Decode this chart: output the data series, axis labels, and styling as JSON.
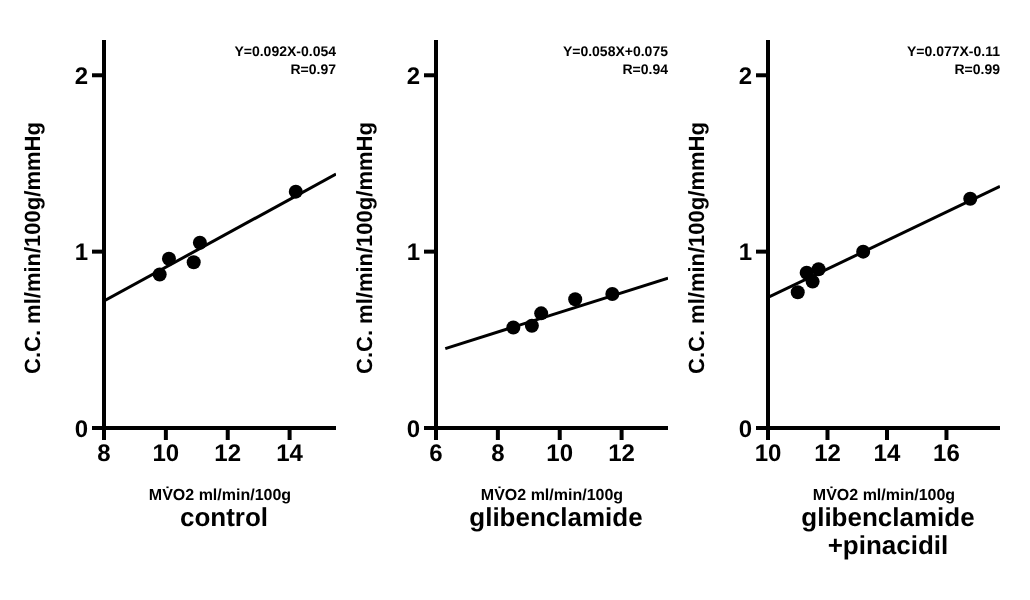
{
  "chart_data": [
    {
      "type": "scatter",
      "title": "control",
      "xlabel": "MV̇O2 ml/min/100g",
      "ylabel": "C.C. ml/min/100g/mmHg",
      "xlim": [
        8,
        15.5
      ],
      "xticks": [
        8,
        10,
        12,
        14
      ],
      "ylim": [
        0,
        2.2
      ],
      "yticks": [
        0,
        1,
        2
      ],
      "annotations": [
        "Y=0.092X-0.054",
        "R=0.97"
      ],
      "series": [
        {
          "marker": "circle",
          "color": "#000000",
          "x": [
            9.8,
            10.1,
            10.9,
            11.1,
            14.2
          ],
          "values": [
            0.87,
            0.96,
            0.94,
            1.05,
            1.34
          ]
        },
        {
          "type": "line",
          "marker": "none",
          "color": "#000000",
          "x": [
            8,
            15.5
          ],
          "values": [
            0.72,
            1.44
          ]
        }
      ]
    },
    {
      "type": "scatter",
      "title": "glibenclamide",
      "xlabel": "MV̇O2 ml/min/100g",
      "ylabel": "C.C. ml/min/100g/mmHg",
      "xlim": [
        6,
        13.5
      ],
      "xticks": [
        6,
        8,
        10,
        12
      ],
      "ylim": [
        0,
        2.2
      ],
      "yticks": [
        0,
        1,
        2
      ],
      "annotations": [
        "Y=0.058X+0.075",
        "R=0.94"
      ],
      "series": [
        {
          "marker": "circle",
          "color": "#000000",
          "x": [
            8.5,
            9.1,
            9.4,
            10.5,
            11.7
          ],
          "values": [
            0.57,
            0.58,
            0.65,
            0.73,
            0.76
          ]
        },
        {
          "type": "line",
          "marker": "none",
          "color": "#000000",
          "x": [
            6.3,
            13.5
          ],
          "values": [
            0.45,
            0.85
          ]
        }
      ]
    },
    {
      "type": "scatter",
      "title": "glibenclamide +pinacidil",
      "xlabel": "MV̇O2 ml/min/100g",
      "ylabel": "C.C. ml/min/100g/mmHg",
      "xlim": [
        10,
        17.8
      ],
      "xticks": [
        10,
        12,
        14,
        16
      ],
      "ylim": [
        0,
        2.2
      ],
      "yticks": [
        0,
        1,
        2
      ],
      "annotations": [
        "Y=0.077X-0.11",
        "R=0.99"
      ],
      "series": [
        {
          "marker": "circle",
          "color": "#000000",
          "x": [
            11.0,
            11.3,
            11.5,
            11.7,
            13.2,
            16.8
          ],
          "values": [
            0.77,
            0.88,
            0.83,
            0.9,
            1.0,
            1.3
          ]
        },
        {
          "type": "line",
          "marker": "none",
          "color": "#000000",
          "x": [
            10,
            17.8
          ],
          "values": [
            0.74,
            1.37
          ]
        }
      ]
    }
  ]
}
